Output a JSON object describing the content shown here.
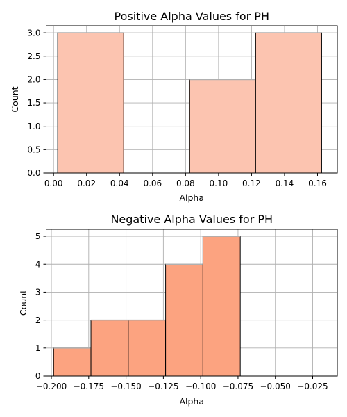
{
  "chart_data": [
    {
      "type": "bar",
      "title": "Positive Alpha Values for PH",
      "xlabel": "Alpha",
      "ylabel": "Count",
      "xlim": [
        -0.0045,
        0.172
      ],
      "ylim": [
        0,
        3.15
      ],
      "xticks": [
        "0.00",
        "0.02",
        "0.04",
        "0.06",
        "0.08",
        "0.10",
        "0.12",
        "0.14",
        "0.16"
      ],
      "xtick_values": [
        0.0,
        0.02,
        0.04,
        0.06,
        0.08,
        0.1,
        0.12,
        0.14,
        0.16
      ],
      "yticks": [
        "0.0",
        "0.5",
        "1.0",
        "1.5",
        "2.0",
        "2.5",
        "3.0"
      ],
      "ytick_values": [
        0,
        0.5,
        1.0,
        1.5,
        2.0,
        2.5,
        3.0
      ],
      "grid": true,
      "bar_color": "#fcc4b0",
      "bins": [
        {
          "x0": 0.0025,
          "x1": 0.0425,
          "value": 3
        },
        {
          "x0": 0.0425,
          "x1": 0.0825,
          "value": 0
        },
        {
          "x0": 0.0825,
          "x1": 0.1225,
          "value": 2
        },
        {
          "x0": 0.1225,
          "x1": 0.1625,
          "value": 3
        }
      ]
    },
    {
      "type": "bar",
      "title": "Negative Alpha Values for PH",
      "xlabel": "Alpha",
      "ylabel": "Count",
      "xlim": [
        -0.2035,
        -0.0085
      ],
      "ylim": [
        0,
        5.25
      ],
      "xticks": [
        "−0.200",
        "−0.175",
        "−0.150",
        "−0.125",
        "−0.100",
        "−0.075",
        "−0.050",
        "−0.025"
      ],
      "xtick_values": [
        -0.2,
        -0.175,
        -0.15,
        -0.125,
        -0.1,
        -0.075,
        -0.05,
        -0.025
      ],
      "yticks": [
        "0",
        "1",
        "2",
        "3",
        "4",
        "5"
      ],
      "ytick_values": [
        0,
        1,
        2,
        3,
        4,
        5
      ],
      "grid": true,
      "bar_color": "#fca380",
      "bins": [
        {
          "x0": -0.1985,
          "x1": -0.1735,
          "value": 1
        },
        {
          "x0": -0.1735,
          "x1": -0.1485,
          "value": 2
        },
        {
          "x0": -0.1485,
          "x1": -0.1235,
          "value": 2
        },
        {
          "x0": -0.1235,
          "x1": -0.0985,
          "value": 4
        },
        {
          "x0": -0.0985,
          "x1": -0.0735,
          "value": 5
        }
      ]
    }
  ]
}
